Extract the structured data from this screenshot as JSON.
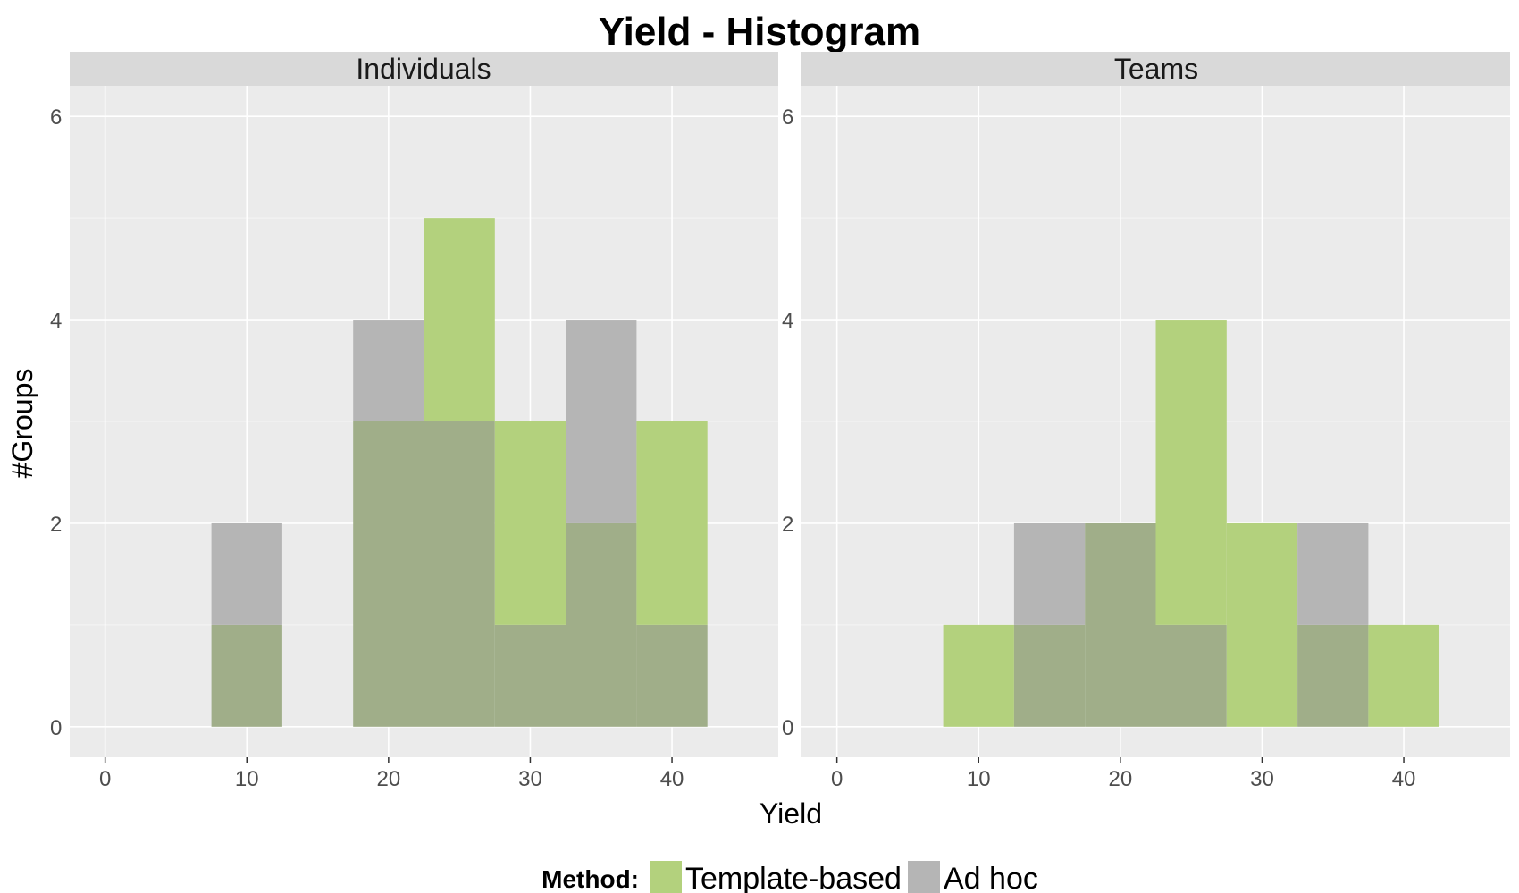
{
  "chart_data": {
    "type": "bar",
    "subtype": "histogram",
    "title": "Yield - Histogram",
    "xlabel": "Yield",
    "ylabel": "#Groups",
    "xlim": [
      -2.5,
      47.5
    ],
    "ylim": [
      -0.3,
      6.3
    ],
    "x_ticks": [
      0,
      10,
      20,
      30,
      40
    ],
    "y_ticks": [
      0,
      2,
      4,
      6
    ],
    "bin_width": 5,
    "bin_centers": [
      10,
      15,
      20,
      25,
      30,
      35,
      40
    ],
    "grid": true,
    "legend": {
      "position": "bottom",
      "title": "Method:",
      "entries": [
        "Template-based",
        "Ad hoc"
      ]
    },
    "colors": {
      "Template-based": "#b3d17d",
      "Ad hoc": "#b5b5b5",
      "overlap": "#a0ae89",
      "panel_bg": "#ebebeb",
      "strip_bg": "#d9d9d9",
      "grid": "#ffffff"
    },
    "facets": [
      {
        "name": "Individuals",
        "series": [
          {
            "name": "Template-based",
            "values": [
              1,
              0,
              3,
              5,
              3,
              2,
              3
            ]
          },
          {
            "name": "Ad hoc",
            "values": [
              2,
              0,
              4,
              3,
              1,
              4,
              1
            ]
          }
        ]
      },
      {
        "name": "Teams",
        "series": [
          {
            "name": "Template-based",
            "values": [
              1,
              1,
              2,
              4,
              2,
              1,
              1
            ]
          },
          {
            "name": "Ad hoc",
            "values": [
              0,
              2,
              2,
              1,
              0,
              2,
              0
            ]
          }
        ]
      }
    ]
  }
}
